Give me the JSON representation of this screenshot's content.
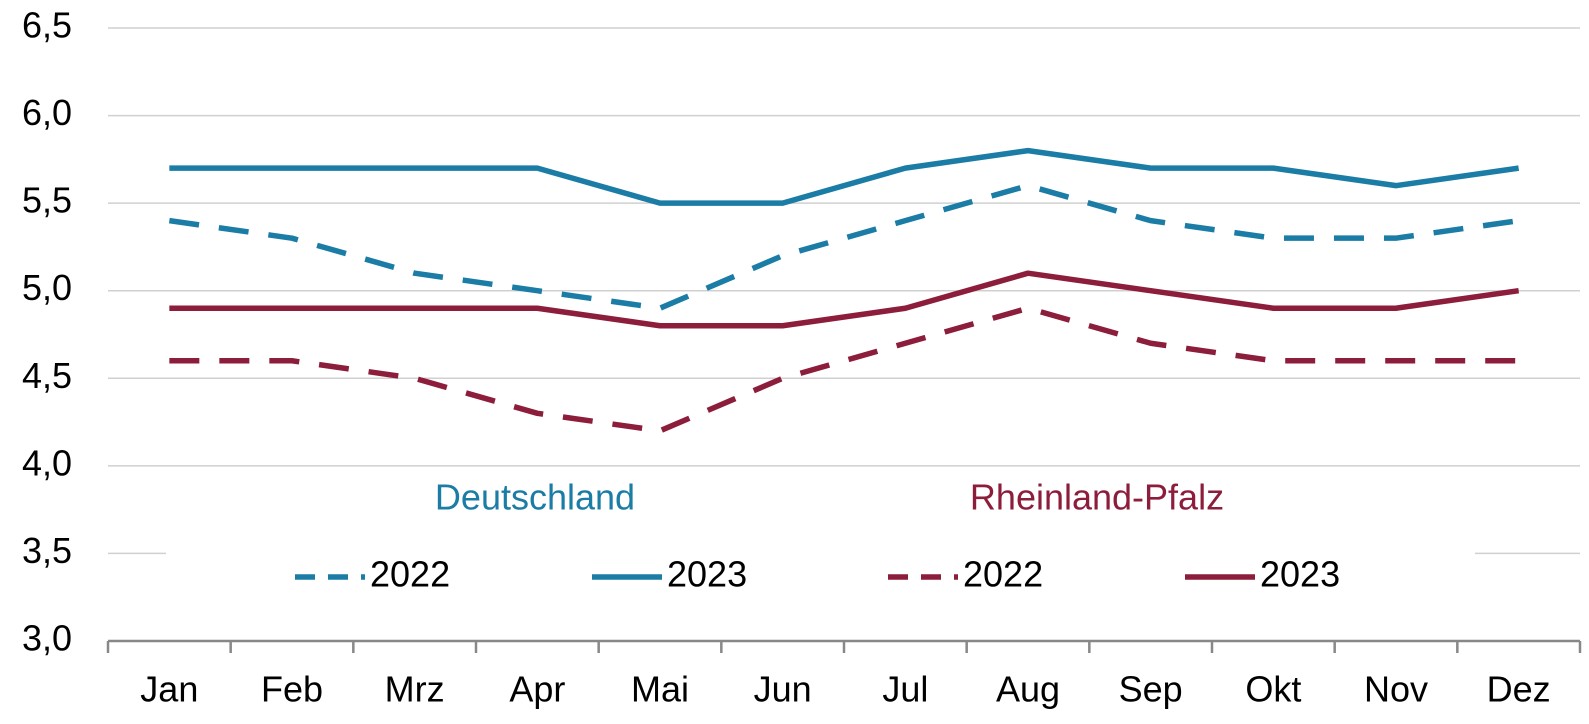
{
  "chart_data": {
    "type": "line",
    "categories": [
      "Jan",
      "Feb",
      "Mrz",
      "Apr",
      "Mai",
      "Jun",
      "Jul",
      "Aug",
      "Sep",
      "Okt",
      "Nov",
      "Dez"
    ],
    "series": [
      {
        "name": "2022",
        "color": "#1b7ca6",
        "dashed": true,
        "values": [
          5.4,
          5.3,
          5.1,
          5.0,
          4.9,
          5.2,
          5.4,
          5.6,
          5.4,
          5.3,
          5.3,
          5.4
        ]
      },
      {
        "name": "2023",
        "color": "#1b7ca6",
        "dashed": false,
        "values": [
          5.7,
          5.7,
          5.7,
          5.7,
          5.5,
          5.5,
          5.7,
          5.8,
          5.7,
          5.7,
          5.6,
          5.7
        ]
      },
      {
        "name": "2022",
        "color": "#8c1d3b",
        "dashed": true,
        "values": [
          4.6,
          4.6,
          4.5,
          4.3,
          4.2,
          4.5,
          4.7,
          4.9,
          4.7,
          4.6,
          4.6,
          4.6
        ]
      },
      {
        "name": "2023",
        "color": "#8c1d3b",
        "dashed": false,
        "values": [
          4.9,
          4.9,
          4.9,
          4.9,
          4.8,
          4.8,
          4.9,
          5.1,
          5.0,
          4.9,
          4.9,
          5.0
        ]
      }
    ],
    "annotations": [
      {
        "text": "Deutschland",
        "color": "#1b7ca6"
      },
      {
        "text": "Rheinland-Pfalz",
        "color": "#8c1d3b"
      }
    ],
    "ylim": [
      3.0,
      6.5
    ],
    "yticks": [
      {
        "value": 3.0,
        "label": "3,0"
      },
      {
        "value": 3.5,
        "label": "3,5"
      },
      {
        "value": 4.0,
        "label": "4,0"
      },
      {
        "value": 4.5,
        "label": "4,5"
      },
      {
        "value": 5.0,
        "label": "5,0"
      },
      {
        "value": 5.5,
        "label": "5,5"
      },
      {
        "value": 6.0,
        "label": "6,0"
      },
      {
        "value": 6.5,
        "label": "6,5"
      }
    ],
    "grid": true
  }
}
